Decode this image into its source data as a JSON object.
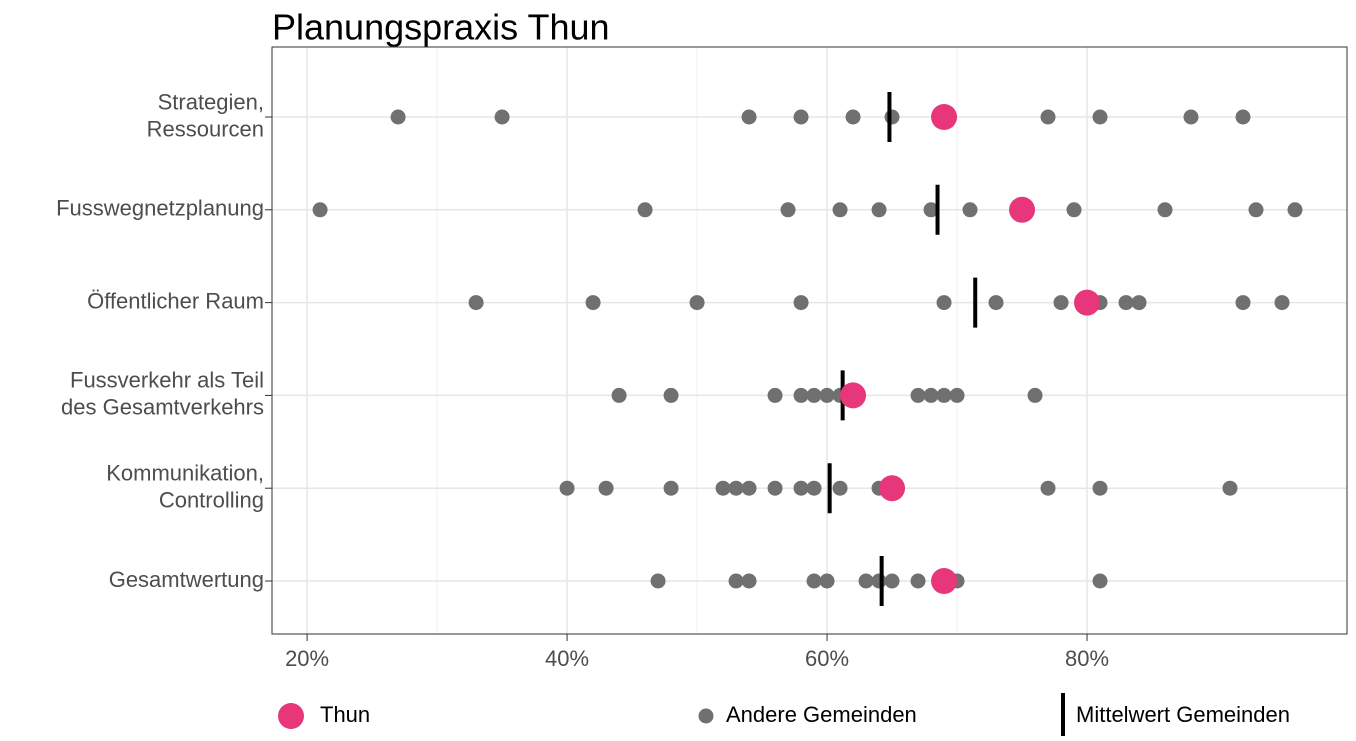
{
  "chart_data": {
    "type": "dot",
    "title": "Planungspraxis Thun",
    "categories": [
      [
        "Strategien,",
        "Ressourcen"
      ],
      [
        "Fusswegnetzplanung"
      ],
      [
        "Öffentlicher Raum"
      ],
      [
        "Fussverkehr als Teil",
        "des Gesamtverkehrs"
      ],
      [
        "Kommunikation,",
        "Controlling"
      ],
      [
        "Gesamtwertung"
      ]
    ],
    "xlim": [
      17.3,
      100
    ],
    "xticks": [
      {
        "value": 20,
        "label": "20%"
      },
      {
        "value": 40,
        "label": "40%"
      },
      {
        "value": 60,
        "label": "60%"
      },
      {
        "value": 80,
        "label": "80%"
      }
    ],
    "grid": true,
    "series": [
      {
        "name": "Andere Gemeinden",
        "color": "#707070",
        "values": [
          [
            27,
            35,
            54,
            58,
            62,
            65,
            77,
            81,
            88,
            92
          ],
          [
            21,
            46,
            57,
            61,
            64,
            68,
            71,
            79,
            86,
            93,
            96
          ],
          [
            33,
            42,
            50,
            58,
            69,
            73,
            78,
            81,
            83,
            84,
            92,
            95
          ],
          [
            44,
            48,
            56,
            58,
            59,
            60,
            61,
            67,
            68,
            69,
            70,
            76
          ],
          [
            40,
            43,
            48,
            52,
            53,
            54,
            56,
            58,
            59,
            61,
            64,
            77,
            81,
            91
          ],
          [
            47,
            53,
            54,
            59,
            60,
            63,
            64,
            65,
            67,
            70,
            81
          ]
        ]
      },
      {
        "name": "Mittelwert Gemeinden",
        "color": "#000000",
        "values": [
          64.8,
          68.5,
          71.4,
          61.2,
          60.2,
          64.2
        ]
      },
      {
        "name": "Thun",
        "color": "#e8367b",
        "values": [
          69,
          75,
          80,
          62,
          65,
          69
        ]
      }
    ]
  }
}
